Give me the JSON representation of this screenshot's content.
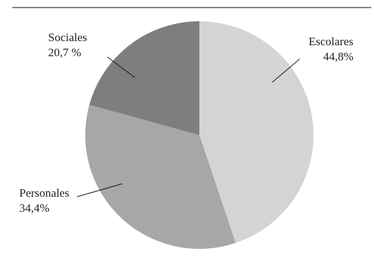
{
  "chart_data": {
    "type": "pie",
    "start_angle_deg": 0,
    "direction": "clockwise",
    "slices": [
      {
        "name": "Escolares",
        "value": 44.8,
        "label": "44,8%",
        "color": "#d4d4d5"
      },
      {
        "name": "Personales",
        "value": 34.4,
        "label": "34,4%",
        "color": "#a7a7a9"
      },
      {
        "name": "Sociales",
        "value": 20.7,
        "label": "20,7 %",
        "color": "#7e7e80"
      }
    ],
    "title": "",
    "legend": "none"
  },
  "colors": {
    "top_rule": "#333333",
    "leader_line": "#111111",
    "text": "#222222"
  }
}
